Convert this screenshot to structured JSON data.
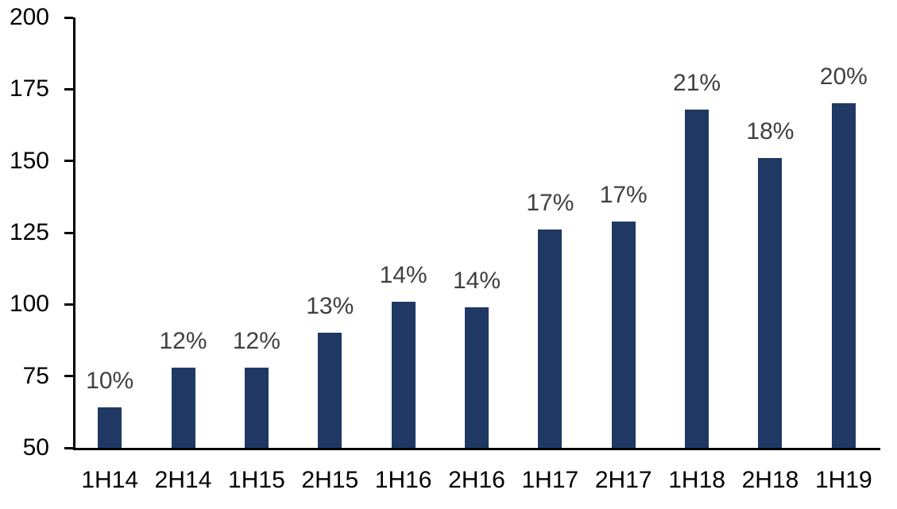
{
  "chart_data": {
    "type": "bar",
    "title": "",
    "xlabel": "",
    "ylabel": "",
    "categories": [
      "1H14",
      "2H14",
      "1H15",
      "2H15",
      "1H16",
      "2H16",
      "1H17",
      "2H17",
      "1H18",
      "2H18",
      "1H19"
    ],
    "values": [
      64,
      78,
      78,
      90,
      101,
      99,
      126,
      129,
      168,
      151,
      170
    ],
    "bar_labels": [
      "10%",
      "12%",
      "12%",
      "13%",
      "14%",
      "14%",
      "17%",
      "17%",
      "21%",
      "18%",
      "20%"
    ],
    "ylim": [
      50,
      200
    ],
    "y_ticks": [
      50,
      75,
      100,
      125,
      150,
      175,
      200
    ],
    "grid": false,
    "legend": false,
    "colors": {
      "bar_fill": "#1F3864",
      "bar_label_text": "#404040",
      "axis_text": "#000000",
      "axis_line": "#000000",
      "background": "#FFFFFF"
    }
  }
}
